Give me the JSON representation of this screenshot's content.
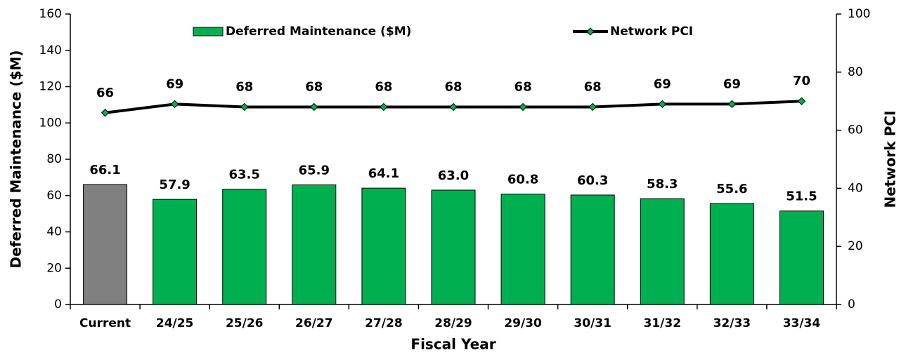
{
  "chart_data": {
    "type": "bar_line",
    "categories": [
      "Current",
      "24/25",
      "25/26",
      "26/27",
      "27/28",
      "28/29",
      "29/30",
      "30/31",
      "31/32",
      "32/33",
      "33/34"
    ],
    "series": [
      {
        "name": "Deferred Maintenance ($M)",
        "type": "bar",
        "axis": "y",
        "color": "#00b050",
        "colors": [
          "#808080",
          "#00b050",
          "#00b050",
          "#00b050",
          "#00b050",
          "#00b050",
          "#00b050",
          "#00b050",
          "#00b050",
          "#00b050",
          "#00b050"
        ],
        "values": [
          66.1,
          57.9,
          63.5,
          65.9,
          64.1,
          63.0,
          60.8,
          60.3,
          58.3,
          55.6,
          51.5
        ],
        "value_labels": [
          "66.1",
          "57.9",
          "63.5",
          "65.9",
          "64.1",
          "63.0",
          "60.8",
          "60.3",
          "58.3",
          "55.6",
          "51.5"
        ]
      },
      {
        "name": "Network PCI",
        "type": "line",
        "axis": "y2",
        "color": "#000000",
        "marker_color": "#00b050",
        "values": [
          66,
          69,
          68,
          68,
          68,
          68,
          68,
          68,
          69,
          69,
          70
        ]
      }
    ],
    "xlabel": "Fiscal Year",
    "ylabel": "Deferred Maintenance ($M)",
    "y2label": "Network PCI",
    "ylim": [
      0,
      160
    ],
    "yticks": [
      0,
      20,
      40,
      60,
      80,
      100,
      120,
      140,
      160
    ],
    "y2lim": [
      0,
      100
    ],
    "y2ticks": [
      0,
      20,
      40,
      60,
      80,
      100
    ],
    "legend": "top",
    "grid": false
  }
}
